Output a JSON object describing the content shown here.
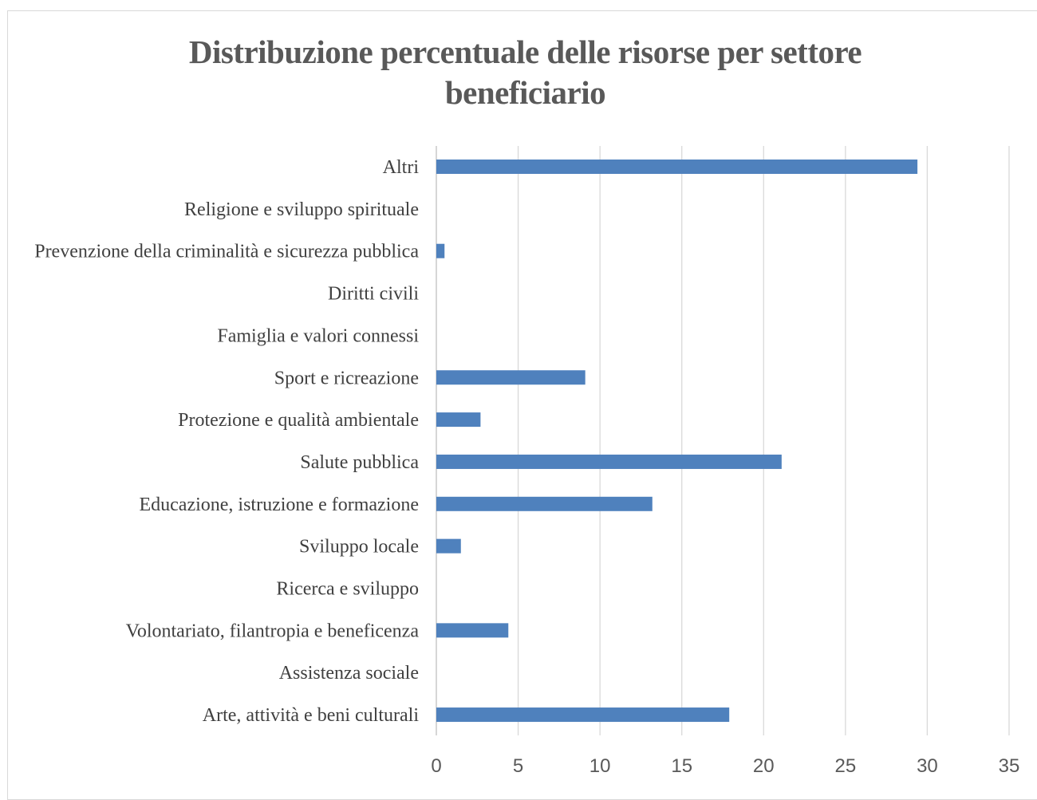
{
  "chart_data": {
    "type": "bar",
    "orientation": "horizontal",
    "title": "Distribuzione percentuale delle risorse per settore beneficiario",
    "categories": [
      "Altri",
      "Religione e sviluppo spirituale",
      "Prevenzione della criminalità e sicurezza pubblica",
      "Diritti civili",
      "Famiglia e valori connessi",
      "Sport e ricreazione",
      "Protezione e qualità ambientale",
      "Salute pubblica",
      "Educazione, istruzione e formazione",
      "Sviluppo locale",
      "Ricerca e sviluppo",
      "Volontariato, filantropia e beneficenza",
      "Assistenza sociale",
      "Arte, attività e beni culturali"
    ],
    "values": [
      29.4,
      0,
      0.5,
      0,
      0,
      9.1,
      2.7,
      21.1,
      13.2,
      1.5,
      0,
      4.4,
      0,
      17.9
    ],
    "xlim": [
      0,
      35
    ],
    "xticks": [
      0,
      5,
      10,
      15,
      20,
      25,
      30,
      35
    ],
    "xlabel": "",
    "ylabel": "",
    "grid": true,
    "legend": "none",
    "bar_color": "#4f81bd"
  }
}
